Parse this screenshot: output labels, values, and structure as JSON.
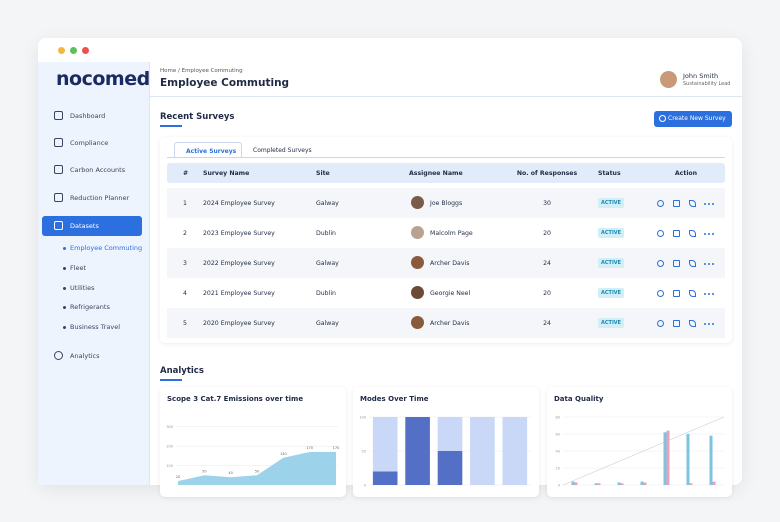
{
  "brand": "nocomed",
  "sidebar": {
    "items": [
      "Dashboard",
      "Compliance",
      "Carbon Accounts",
      "Reduction Planner",
      "Datasets"
    ],
    "subitems": [
      "Employee Commuting",
      "Fleet",
      "Utilities",
      "Refrigerants",
      "Business Travel"
    ],
    "bottom": "Analytics"
  },
  "header": {
    "breadcrumb": "Home / Employee Commuting",
    "title": "Employee Commuting",
    "user_name": "John Smith",
    "user_role": "Sustainability Lead"
  },
  "surveys": {
    "title": "Recent Surveys",
    "button": "Create New Survey",
    "tabs": [
      "Active Surveys",
      "Completed Surveys"
    ],
    "columns": [
      "#",
      "Survey Name",
      "Site",
      "Assignee Name",
      "No. of Responses",
      "Status",
      "Action"
    ],
    "rows": [
      [
        "1",
        "2024 Employee Survey",
        "Galway",
        "Joe Bloggs",
        "30",
        "ACTIVE"
      ],
      [
        "2",
        "2023 Employee Survey",
        "Dublin",
        "Malcolm Page",
        "20",
        "ACTIVE"
      ],
      [
        "3",
        "2022 Employee Survey",
        "Galway",
        "Archer Davis",
        "24",
        "ACTIVE"
      ],
      [
        "4",
        "2021 Employee Survey",
        "Dublin",
        "Georgie Neel",
        "20",
        "ACTIVE"
      ],
      [
        "5",
        "2020 Employee Survey",
        "Galway",
        "Archer Davis",
        "24",
        "ACTIVE"
      ]
    ]
  },
  "analytics": {
    "title": "Analytics",
    "charts": [
      {
        "type": "area",
        "title": "Scope 3 Cat.7 Emissions over time",
        "values": [
          20,
          50,
          40,
          50,
          140,
          170,
          170
        ],
        "color": "#9dd3ea",
        "ylim": [
          0,
          350
        ],
        "yticks": [
          100,
          200,
          300
        ]
      },
      {
        "type": "stacked-bar",
        "title": "Modes Over Time",
        "ylim": [
          0,
          100
        ],
        "yticks": [
          0,
          50,
          100
        ],
        "series": [
          {
            "color": "#5470c6",
            "values": [
              20,
              100,
              50,
              0,
              0
            ]
          },
          {
            "color": "#c9d8f7",
            "values": [
              80,
              0,
              50,
              100,
              100
            ]
          }
        ]
      },
      {
        "type": "grouped-bar",
        "title": "Data Quality",
        "ylim": [
          0,
          80
        ],
        "yticks": [
          0,
          20,
          40,
          60,
          80
        ],
        "series": [
          {
            "color": "#7ec3df",
            "values": [
              4,
              2,
              3,
              4,
              62,
              60,
              58
            ]
          },
          {
            "color": "#e7a3b8",
            "values": [
              3,
              2,
              2,
              3,
              64,
              2,
              4
            ]
          }
        ]
      }
    ]
  }
}
